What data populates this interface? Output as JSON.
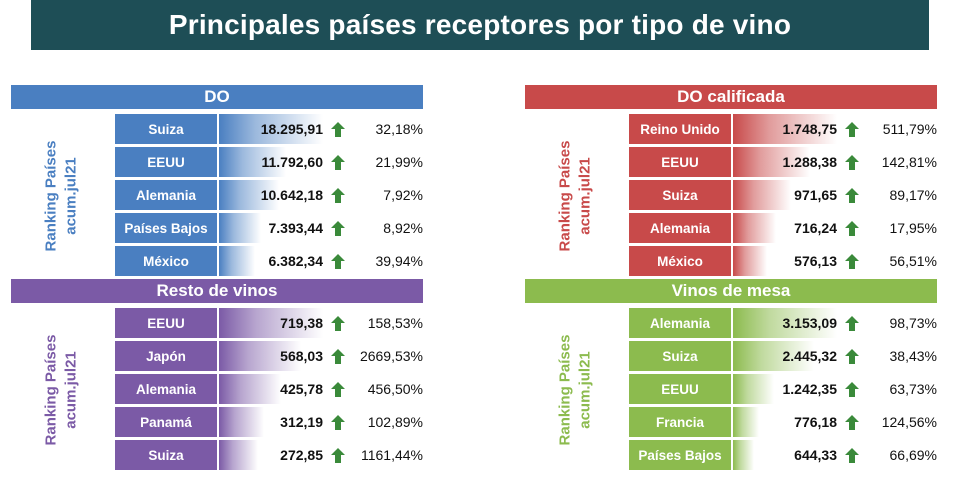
{
  "title": "Principales países receptores por tipo de vino",
  "side_label": {
    "line1": "Ranking Países",
    "line2": "acum.jul21"
  },
  "colors": {
    "title_bg": "#1e4e56",
    "arrow_up": "#3a8a3a"
  },
  "chart_data": [
    {
      "type": "table",
      "title": "DO",
      "color": "#4a7fc1",
      "rows": [
        {
          "country": "Suiza",
          "value": 18295.91,
          "value_label": "18.295,91",
          "change": "32,18%"
        },
        {
          "country": "EEUU",
          "value": 11792.6,
          "value_label": "11.792,60",
          "change": "21,99%"
        },
        {
          "country": "Alemania",
          "value": 10642.18,
          "value_label": "10.642,18",
          "change": "7,92%"
        },
        {
          "country": "Países Bajos",
          "value": 7393.44,
          "value_label": "7.393,44",
          "change": "8,92%"
        },
        {
          "country": "México",
          "value": 6382.34,
          "value_label": "6.382,34",
          "change": "39,94%"
        }
      ]
    },
    {
      "type": "table",
      "title": "DO calificada",
      "color": "#c84a4a",
      "rows": [
        {
          "country": "Reino Unido",
          "value": 1748.75,
          "value_label": "1.748,75",
          "change": "511,79%"
        },
        {
          "country": "EEUU",
          "value": 1288.38,
          "value_label": "1.288,38",
          "change": "142,81%"
        },
        {
          "country": "Suiza",
          "value": 971.65,
          "value_label": "971,65",
          "change": "89,17%"
        },
        {
          "country": "Alemania",
          "value": 716.24,
          "value_label": "716,24",
          "change": "17,95%"
        },
        {
          "country": "México",
          "value": 576.13,
          "value_label": "576,13",
          "change": "56,51%"
        }
      ]
    },
    {
      "type": "table",
      "title": "Resto de vinos",
      "color": "#7b5aa6",
      "rows": [
        {
          "country": "EEUU",
          "value": 719.38,
          "value_label": "719,38",
          "change": "158,53%"
        },
        {
          "country": "Japón",
          "value": 568.03,
          "value_label": "568,03",
          "change": "2669,53%"
        },
        {
          "country": "Alemania",
          "value": 425.78,
          "value_label": "425,78",
          "change": "456,50%"
        },
        {
          "country": "Panamá",
          "value": 312.19,
          "value_label": "312,19",
          "change": "102,89%"
        },
        {
          "country": "Suiza",
          "value": 272.85,
          "value_label": "272,85",
          "change": "1161,44%"
        }
      ]
    },
    {
      "type": "table",
      "title": "Vinos de mesa",
      "color": "#8cbb4e",
      "rows": [
        {
          "country": "Alemania",
          "value": 3153.09,
          "value_label": "3.153,09",
          "change": "98,73%"
        },
        {
          "country": "Suiza",
          "value": 2445.32,
          "value_label": "2.445,32",
          "change": "38,43%"
        },
        {
          "country": "EEUU",
          "value": 1242.35,
          "value_label": "1.242,35",
          "change": "63,73%"
        },
        {
          "country": "Francia",
          "value": 776.18,
          "value_label": "776,18",
          "change": "124,56%"
        },
        {
          "country": "Países Bajos",
          "value": 644.33,
          "value_label": "644,33",
          "change": "66,69%"
        }
      ]
    }
  ]
}
